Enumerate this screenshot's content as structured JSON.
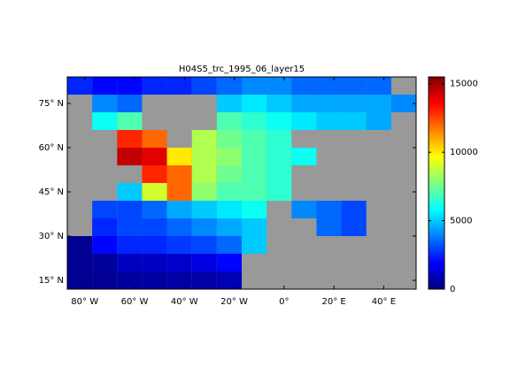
{
  "chart_data": {
    "type": "heatmap",
    "title": "H04S5_trc_1995_06_layer15",
    "colormap": "jet",
    "x": [
      -82,
      -72,
      -62,
      -52,
      -42,
      -32,
      -22,
      -12,
      -2,
      8,
      18,
      28,
      38,
      48
    ],
    "y": [
      15,
      21,
      27,
      33,
      39,
      45,
      51,
      57,
      63,
      69,
      75,
      81
    ],
    "z": [
      [
        300,
        300,
        500,
        500,
        600,
        600,
        800,
        null,
        null,
        null,
        null,
        null,
        null,
        null
      ],
      [
        300,
        400,
        1000,
        1000,
        1200,
        1500,
        2000,
        null,
        null,
        null,
        null,
        null,
        null,
        null
      ],
      [
        300,
        2000,
        2500,
        2500,
        2800,
        3000,
        3500,
        5000,
        null,
        null,
        null,
        null,
        null,
        null
      ],
      [
        null,
        2500,
        3000,
        3000,
        3500,
        4000,
        4500,
        5000,
        null,
        null,
        3500,
        3000,
        null,
        null
      ],
      [
        null,
        3000,
        3000,
        3500,
        4500,
        5000,
        5500,
        6000,
        null,
        4000,
        3500,
        3000,
        null,
        null
      ],
      [
        null,
        null,
        5000,
        9000,
        12000,
        8000,
        7000,
        7000,
        6500,
        null,
        null,
        null,
        null,
        null
      ],
      [
        null,
        null,
        null,
        13000,
        12000,
        8500,
        7500,
        7000,
        6500,
        null,
        null,
        null,
        null,
        null
      ],
      [
        null,
        null,
        14500,
        14000,
        10000,
        8500,
        8000,
        7000,
        6500,
        6000,
        null,
        null,
        null,
        null
      ],
      [
        null,
        null,
        13000,
        12000,
        null,
        8500,
        7500,
        7000,
        6500,
        null,
        null,
        null,
        null,
        null
      ],
      [
        null,
        6000,
        7000,
        null,
        null,
        null,
        7000,
        6500,
        6000,
        5500,
        5000,
        5000,
        4500,
        null
      ],
      [
        null,
        4000,
        3500,
        null,
        null,
        null,
        5000,
        5500,
        5000,
        4500,
        4500,
        4500,
        4500,
        4000
      ],
      [
        2500,
        2000,
        2000,
        2500,
        2500,
        3000,
        3500,
        4000,
        4000,
        3500,
        3500,
        3500,
        3500,
        null
      ]
    ],
    "xlim": [
      -87,
      53
    ],
    "ylim": [
      12,
      84
    ],
    "xticks": [
      {
        "value": -80,
        "label": "80° W"
      },
      {
        "value": -60,
        "label": "60° W"
      },
      {
        "value": -40,
        "label": "40° W"
      },
      {
        "value": -20,
        "label": "20° W"
      },
      {
        "value": 0,
        "label": "0°"
      },
      {
        "value": 20,
        "label": "20° E"
      },
      {
        "value": 40,
        "label": "40° E"
      }
    ],
    "yticks": [
      {
        "value": 15,
        "label": "15° N"
      },
      {
        "value": 30,
        "label": "30° N"
      },
      {
        "value": 45,
        "label": "45° N"
      },
      {
        "value": 60,
        "label": "60° N"
      },
      {
        "value": 75,
        "label": "75° N"
      }
    ],
    "clim": [
      0,
      15500
    ],
    "cticks": [
      0,
      5000,
      10000,
      15000
    ]
  }
}
